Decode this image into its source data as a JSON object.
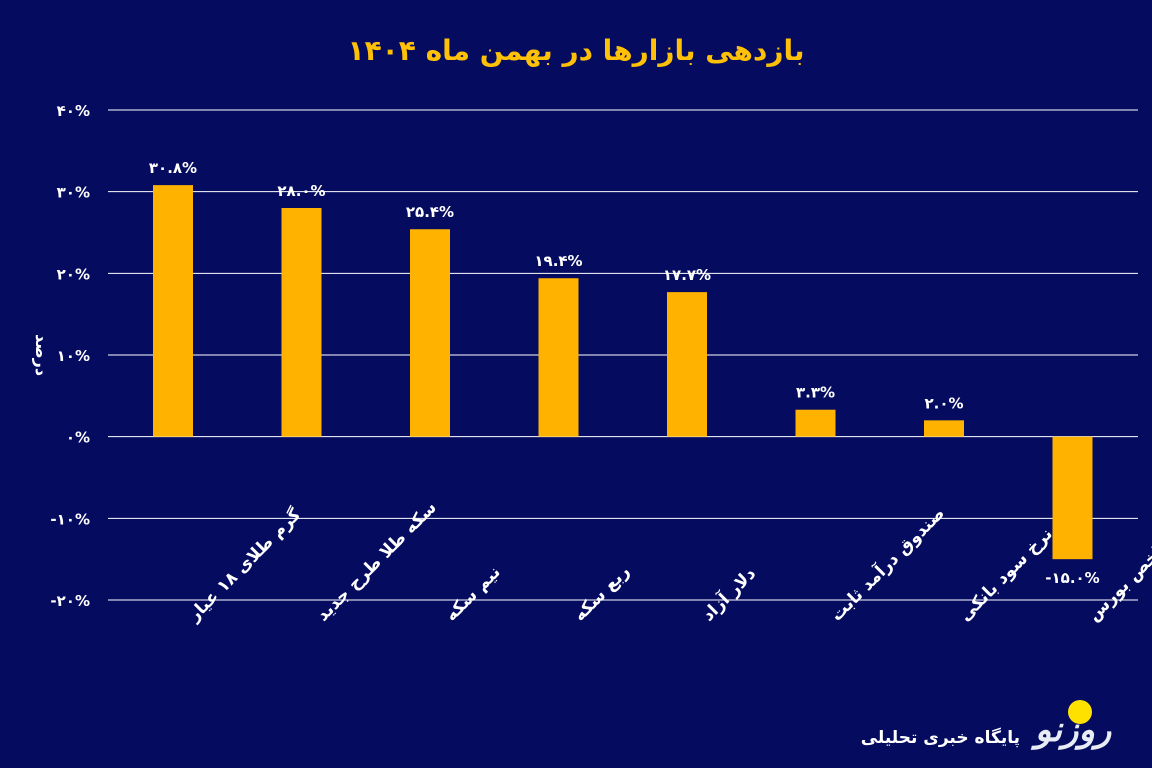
{
  "chart_data": {
    "type": "bar",
    "title": "بازدهی بازارها در بهمن ماه ۱۴۰۴",
    "ylabel": "درصد",
    "xlabel": "",
    "ylim": [
      -20,
      40
    ],
    "yticks": [
      40,
      30,
      20,
      10,
      0,
      -10,
      -20
    ],
    "ytick_labels": [
      "۴۰%",
      "۳۰%",
      "۲۰%",
      "۱۰%",
      "۰%",
      "-۱۰%",
      "-۲۰%"
    ],
    "grid": "horizontal",
    "categories": [
      "گرم طلای ۱۸ عیار",
      "سکه طلا طرح جدید",
      "نیم سکه",
      "ربع سکه",
      "دلار آزاد",
      "صندوق درآمد ثابت",
      "نرخ سود بانکی",
      "شاخص بورس"
    ],
    "values": [
      30.8,
      28.0,
      25.4,
      19.4,
      17.7,
      3.3,
      2.0,
      -15.0
    ],
    "data_labels": [
      "۳۰.۸%",
      "۲۸.۰%",
      "۲۵.۴%",
      "۱۹.۴%",
      "۱۷.۷%",
      "۳.۳%",
      "۲.۰%",
      "-۱۵.۰%"
    ],
    "colors": {
      "bar": "#ffb300",
      "background": "#050b5f",
      "title": "#ffc107",
      "grid": "#ffffff"
    }
  },
  "branding": {
    "logo": "روزنو",
    "tagline": "پایگاه خبری تحلیلی"
  }
}
